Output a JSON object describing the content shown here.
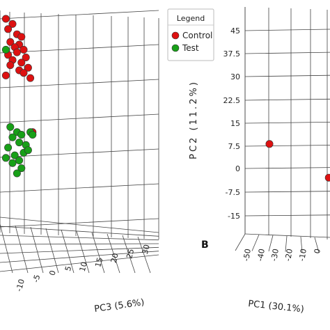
{
  "chart_data": [
    {
      "type": "scatter",
      "panel_label": "",
      "axes": [
        {
          "label": "PC3 (5.6%)",
          "ticks": [
            "-10",
            "-5",
            "0",
            "5",
            "10",
            "15",
            "20",
            "25",
            "30"
          ]
        }
      ],
      "legend": {
        "title": "Legend",
        "placement": "top-right",
        "entries": [
          {
            "name": "Control",
            "color": "#dd1111"
          },
          {
            "name": "Test",
            "color": "#18a018"
          }
        ]
      },
      "series": [
        {
          "name": "Control",
          "color": "#dd1111",
          "points": [
            [
              -3,
              40
            ],
            [
              0,
              38
            ],
            [
              -2,
              36
            ],
            [
              2,
              34
            ],
            [
              4,
              33
            ],
            [
              -1,
              31
            ],
            [
              3,
              30
            ],
            [
              1,
              29
            ],
            [
              5,
              28
            ],
            [
              2,
              27
            ],
            [
              -2,
              26
            ],
            [
              6,
              25
            ],
            [
              0,
              24
            ],
            [
              4,
              23
            ],
            [
              -1,
              22
            ],
            [
              7,
              21
            ],
            [
              3,
              20
            ],
            [
              5,
              19
            ],
            [
              -3,
              18
            ],
            [
              8,
              17
            ],
            [
              9,
              -4
            ]
          ]
        },
        {
          "name": "Test",
          "color": "#18a018",
          "points": [
            [
              -3,
              28
            ],
            [
              -1,
              -2
            ],
            [
              2,
              -4
            ],
            [
              0,
              -6
            ],
            [
              4,
              -5
            ],
            [
              3,
              -8
            ],
            [
              6,
              -9
            ],
            [
              -2,
              -10
            ],
            [
              5,
              -12
            ],
            [
              1,
              -13
            ],
            [
              8,
              -4
            ],
            [
              7,
              -11
            ],
            [
              3,
              -15
            ],
            [
              4,
              -18
            ],
            [
              0,
              -16
            ],
            [
              -3,
              -14
            ],
            [
              9,
              -5
            ],
            [
              2,
              -20
            ]
          ]
        }
      ]
    },
    {
      "type": "scatter",
      "panel_label": "B",
      "axes": [
        {
          "label": "PC2 (11.2%)",
          "ticks": [
            "45",
            "37.5",
            "30",
            "22.5",
            "15",
            "7.5",
            "0",
            "-7.5",
            "-15"
          ]
        },
        {
          "label": "PC1 (30.1%)",
          "ticks": [
            "-50",
            "-40",
            "-30",
            "-20",
            "-10",
            "0"
          ]
        }
      ],
      "series": [
        {
          "name": "Control",
          "color": "#dd1111",
          "points": [
            [
              -55,
              8
            ],
            [
              0,
              -3
            ]
          ]
        }
      ]
    }
  ]
}
